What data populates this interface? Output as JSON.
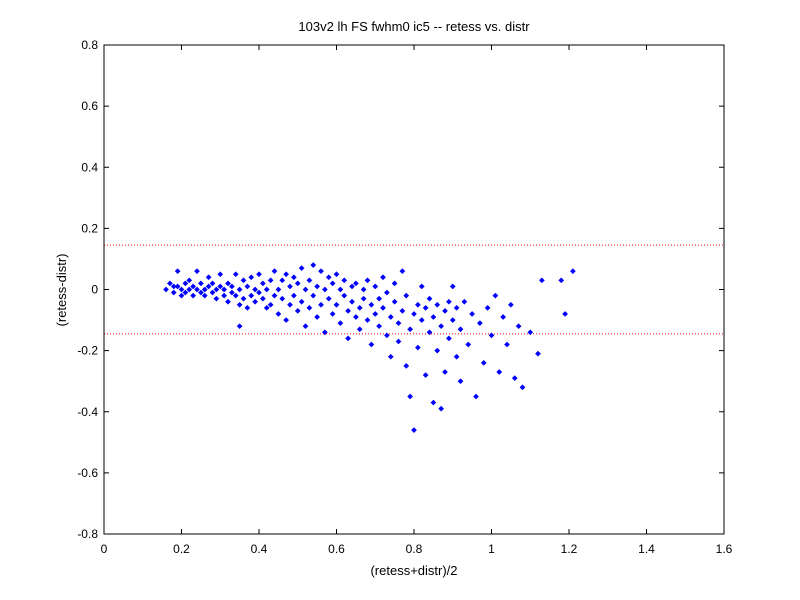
{
  "chart_data": {
    "type": "scatter",
    "title": "103v2 lh FS fwhm0 ic5 -- retess vs. distr",
    "xlabel": "(retess+distr)/2",
    "ylabel": "(retess-distr)",
    "xlim": [
      0,
      1.6
    ],
    "ylim": [
      -0.8,
      0.8
    ],
    "xticks": [
      0,
      0.2,
      0.4,
      0.6,
      0.8,
      1,
      1.2,
      1.4,
      1.6
    ],
    "yticks": [
      -0.8,
      -0.6,
      -0.4,
      -0.2,
      0,
      0.2,
      0.4,
      0.6,
      0.8
    ],
    "xtick_labels": [
      "0",
      "0.2",
      "0.4",
      "0.6",
      "0.8",
      "1",
      "1.2",
      "1.4",
      "1.6"
    ],
    "ytick_labels": [
      "-0.8",
      "-0.6",
      "-0.4",
      "-0.2",
      "0",
      "0.2",
      "0.4",
      "0.6",
      "0.8"
    ],
    "grid": false,
    "marker_color": "#0000ff",
    "reference_line_color": "#ff0000",
    "reference_lines": [
      0.145,
      -0.145
    ],
    "series": [
      {
        "points": [
          [
            0.16,
            0.0
          ],
          [
            0.17,
            0.02
          ],
          [
            0.18,
            0.01
          ],
          [
            0.18,
            -0.01
          ],
          [
            0.19,
            0.06
          ],
          [
            0.19,
            0.01
          ],
          [
            0.2,
            0.0
          ],
          [
            0.2,
            -0.02
          ],
          [
            0.21,
            0.02
          ],
          [
            0.21,
            -0.01
          ],
          [
            0.22,
            0.03
          ],
          [
            0.22,
            0.0
          ],
          [
            0.23,
            -0.02
          ],
          [
            0.23,
            0.01
          ],
          [
            0.24,
            0.06
          ],
          [
            0.24,
            0.0
          ],
          [
            0.25,
            -0.01
          ],
          [
            0.25,
            0.02
          ],
          [
            0.26,
            0.0
          ],
          [
            0.26,
            -0.02
          ],
          [
            0.27,
            0.01
          ],
          [
            0.27,
            0.04
          ],
          [
            0.28,
            -0.01
          ],
          [
            0.28,
            0.02
          ],
          [
            0.29,
            0.0
          ],
          [
            0.29,
            -0.03
          ],
          [
            0.3,
            0.01
          ],
          [
            0.3,
            0.05
          ],
          [
            0.31,
            -0.02
          ],
          [
            0.31,
            0.0
          ],
          [
            0.32,
            0.02
          ],
          [
            0.32,
            -0.04
          ],
          [
            0.33,
            0.01
          ],
          [
            0.33,
            -0.01
          ],
          [
            0.34,
            0.05
          ],
          [
            0.34,
            -0.02
          ],
          [
            0.35,
            0.0
          ],
          [
            0.35,
            -0.05
          ],
          [
            0.35,
            -0.12
          ],
          [
            0.36,
            0.03
          ],
          [
            0.36,
            -0.03
          ],
          [
            0.37,
            0.01
          ],
          [
            0.37,
            -0.06
          ],
          [
            0.38,
            0.04
          ],
          [
            0.38,
            -0.02
          ],
          [
            0.39,
            0.0
          ],
          [
            0.39,
            -0.04
          ],
          [
            0.4,
            0.05
          ],
          [
            0.4,
            -0.01
          ],
          [
            0.41,
            -0.03
          ],
          [
            0.41,
            0.02
          ],
          [
            0.42,
            -0.06
          ],
          [
            0.42,
            0.0
          ],
          [
            0.43,
            0.03
          ],
          [
            0.43,
            -0.05
          ],
          [
            0.44,
            0.06
          ],
          [
            0.44,
            -0.02
          ],
          [
            0.45,
            0.0
          ],
          [
            0.45,
            -0.08
          ],
          [
            0.46,
            0.03
          ],
          [
            0.46,
            -0.03
          ],
          [
            0.47,
            0.05
          ],
          [
            0.47,
            -0.1
          ],
          [
            0.48,
            0.01
          ],
          [
            0.48,
            -0.05
          ],
          [
            0.49,
            -0.02
          ],
          [
            0.49,
            0.04
          ],
          [
            0.5,
            -0.07
          ],
          [
            0.5,
            0.02
          ],
          [
            0.51,
            0.07
          ],
          [
            0.51,
            -0.04
          ],
          [
            0.52,
            0.0
          ],
          [
            0.52,
            -0.12
          ],
          [
            0.53,
            0.03
          ],
          [
            0.53,
            -0.06
          ],
          [
            0.54,
            -0.02
          ],
          [
            0.54,
            0.08
          ],
          [
            0.55,
            -0.09
          ],
          [
            0.55,
            0.01
          ],
          [
            0.56,
            -0.05
          ],
          [
            0.56,
            0.06
          ],
          [
            0.57,
            -0.14
          ],
          [
            0.57,
            0.0
          ],
          [
            0.58,
            -0.03
          ],
          [
            0.58,
            0.04
          ],
          [
            0.59,
            -0.08
          ],
          [
            0.59,
            0.02
          ],
          [
            0.6,
            -0.05
          ],
          [
            0.6,
            0.05
          ],
          [
            0.61,
            -0.11
          ],
          [
            0.61,
            0.0
          ],
          [
            0.62,
            -0.02
          ],
          [
            0.62,
            0.03
          ],
          [
            0.63,
            -0.07
          ],
          [
            0.63,
            -0.16
          ],
          [
            0.64,
            0.01
          ],
          [
            0.64,
            -0.04
          ],
          [
            0.65,
            -0.09
          ],
          [
            0.65,
            0.02
          ],
          [
            0.66,
            -0.06
          ],
          [
            0.66,
            -0.13
          ],
          [
            0.67,
            0.0
          ],
          [
            0.67,
            -0.03
          ],
          [
            0.68,
            -0.1
          ],
          [
            0.68,
            0.03
          ],
          [
            0.69,
            -0.05
          ],
          [
            0.69,
            -0.18
          ],
          [
            0.7,
            -0.08
          ],
          [
            0.7,
            0.01
          ],
          [
            0.71,
            -0.12
          ],
          [
            0.71,
            -0.03
          ],
          [
            0.72,
            -0.06
          ],
          [
            0.72,
            0.04
          ],
          [
            0.73,
            -0.15
          ],
          [
            0.73,
            -0.01
          ],
          [
            0.74,
            -0.09
          ],
          [
            0.74,
            -0.22
          ],
          [
            0.75,
            -0.04
          ],
          [
            0.75,
            0.02
          ],
          [
            0.76,
            -0.11
          ],
          [
            0.76,
            -0.17
          ],
          [
            0.77,
            -0.07
          ],
          [
            0.77,
            0.06
          ],
          [
            0.78,
            -0.25
          ],
          [
            0.78,
            -0.02
          ],
          [
            0.79,
            -0.13
          ],
          [
            0.79,
            -0.35
          ],
          [
            0.8,
            -0.08
          ],
          [
            0.8,
            -0.46
          ],
          [
            0.81,
            -0.05
          ],
          [
            0.81,
            -0.19
          ],
          [
            0.82,
            -0.1
          ],
          [
            0.82,
            0.01
          ],
          [
            0.83,
            -0.28
          ],
          [
            0.83,
            -0.06
          ],
          [
            0.84,
            -0.14
          ],
          [
            0.84,
            -0.03
          ],
          [
            0.85,
            -0.37
          ],
          [
            0.85,
            -0.09
          ],
          [
            0.86,
            -0.2
          ],
          [
            0.86,
            -0.05
          ],
          [
            0.87,
            -0.39
          ],
          [
            0.87,
            -0.12
          ],
          [
            0.88,
            -0.07
          ],
          [
            0.88,
            -0.27
          ],
          [
            0.89,
            -0.04
          ],
          [
            0.89,
            -0.16
          ],
          [
            0.9,
            -0.1
          ],
          [
            0.9,
            0.01
          ],
          [
            0.91,
            -0.22
          ],
          [
            0.91,
            -0.06
          ],
          [
            0.92,
            -0.13
          ],
          [
            0.92,
            -0.3
          ],
          [
            0.93,
            -0.04
          ],
          [
            0.94,
            -0.18
          ],
          [
            0.95,
            -0.08
          ],
          [
            0.96,
            -0.35
          ],
          [
            0.97,
            -0.11
          ],
          [
            0.98,
            -0.24
          ],
          [
            0.99,
            -0.06
          ],
          [
            1.0,
            -0.15
          ],
          [
            1.01,
            -0.02
          ],
          [
            1.02,
            -0.27
          ],
          [
            1.03,
            -0.09
          ],
          [
            1.04,
            -0.18
          ],
          [
            1.05,
            -0.05
          ],
          [
            1.06,
            -0.29
          ],
          [
            1.07,
            -0.12
          ],
          [
            1.08,
            -0.32
          ],
          [
            1.1,
            -0.14
          ],
          [
            1.12,
            -0.21
          ],
          [
            1.13,
            0.03
          ],
          [
            1.18,
            0.03
          ],
          [
            1.19,
            -0.08
          ],
          [
            1.21,
            0.06
          ]
        ]
      }
    ]
  }
}
